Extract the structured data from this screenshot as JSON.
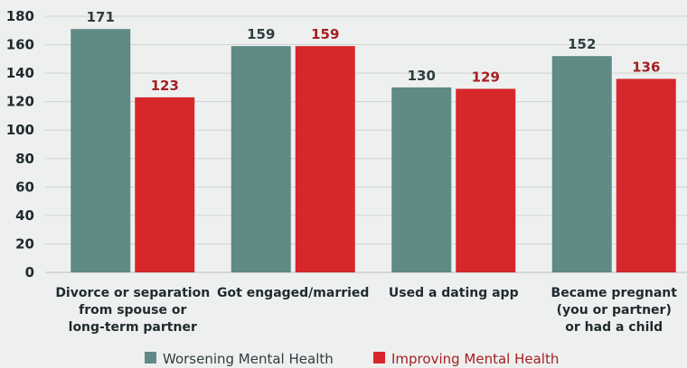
{
  "chart_data": {
    "type": "bar",
    "categories": [
      [
        "Divorce or separation",
        "from spouse or",
        "long-term partner"
      ],
      [
        "Got engaged/married"
      ],
      [
        "Used a dating app"
      ],
      [
        "Became pregnant",
        "(you or partner)",
        "or had a child"
      ]
    ],
    "series": [
      {
        "name": "Worsening Mental Health",
        "values": [
          171,
          159,
          130,
          152
        ],
        "color": "#5f8a86",
        "label_color": "#2f3d40"
      },
      {
        "name": "Improving Mental Health",
        "values": [
          123,
          159,
          129,
          136
        ],
        "color": "#d6272b",
        "label_color": "#a32022"
      }
    ],
    "yticks": [
      "0",
      "20",
      "40",
      "60",
      "80",
      "100",
      "120",
      "140",
      "160",
      "180"
    ],
    "ylim": [
      0,
      180
    ],
    "grid": true,
    "legend": "bottom-center",
    "title": "",
    "xlabel": "",
    "ylabel": ""
  }
}
